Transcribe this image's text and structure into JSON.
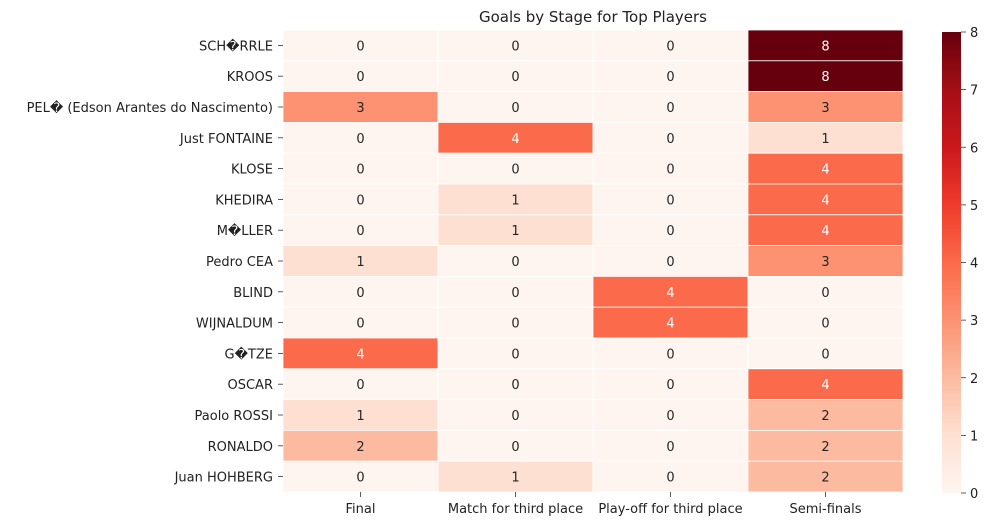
{
  "chart_data": {
    "type": "heatmap",
    "title": "Goals by Stage for Top Players",
    "xlabel": "",
    "ylabel": "",
    "colormap": "Reds",
    "columns": [
      "Final",
      "Match for third place",
      "Play-off for third place",
      "Semi-finals"
    ],
    "rows": [
      "SCH�RRLE",
      "KROOS",
      "PEL� (Edson Arantes do Nascimento)",
      "Just FONTAINE",
      "KLOSE",
      "KHEDIRA",
      "M�LLER",
      "Pedro CEA",
      "BLIND",
      "WIJNALDUM",
      "G�TZE",
      "OSCAR",
      "Paolo ROSSI",
      "RONALDO",
      "Juan HOHBERG"
    ],
    "values": [
      [
        0,
        0,
        0,
        8
      ],
      [
        0,
        0,
        0,
        8
      ],
      [
        3,
        0,
        0,
        3
      ],
      [
        0,
        4,
        0,
        1
      ],
      [
        0,
        0,
        0,
        4
      ],
      [
        0,
        1,
        0,
        4
      ],
      [
        0,
        1,
        0,
        4
      ],
      [
        1,
        0,
        0,
        3
      ],
      [
        0,
        0,
        4,
        0
      ],
      [
        0,
        0,
        4,
        0
      ],
      [
        4,
        0,
        0,
        0
      ],
      [
        0,
        0,
        0,
        4
      ],
      [
        1,
        0,
        0,
        2
      ],
      [
        2,
        0,
        0,
        2
      ],
      [
        0,
        1,
        0,
        2
      ]
    ],
    "vmin": 0,
    "vmax": 8,
    "colorbar_ticks": [
      0,
      1,
      2,
      3,
      4,
      5,
      6,
      7,
      8
    ]
  }
}
